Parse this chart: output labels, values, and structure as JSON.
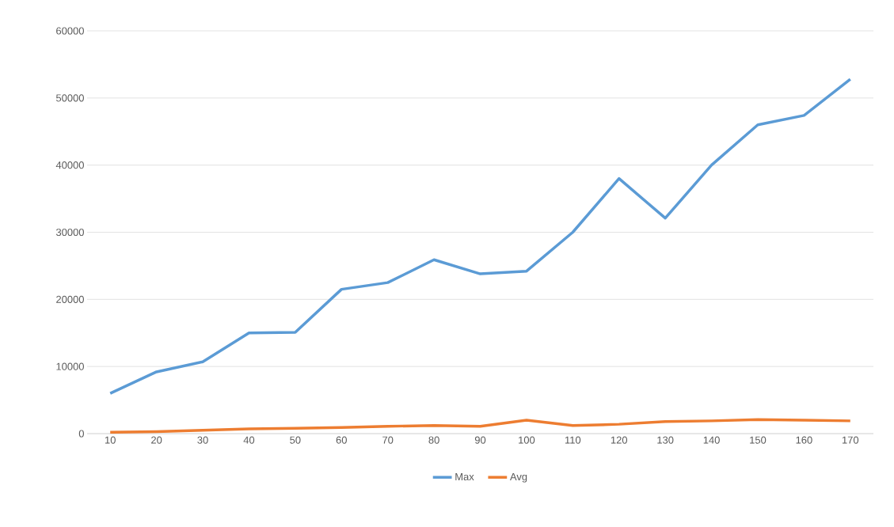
{
  "chart_data": {
    "type": "line",
    "categories": [
      "10",
      "20",
      "30",
      "40",
      "50",
      "60",
      "70",
      "80",
      "90",
      "100",
      "110",
      "120",
      "130",
      "140",
      "150",
      "160",
      "170"
    ],
    "series": [
      {
        "name": "Max",
        "color": "#5b9bd5",
        "values": [
          6000,
          9200,
          10700,
          15000,
          15100,
          21500,
          22500,
          25900,
          23800,
          24200,
          30000,
          38000,
          32100,
          40000,
          46000,
          47400,
          52800
        ]
      },
      {
        "name": "Avg",
        "color": "#ed7d31",
        "values": [
          200,
          300,
          500,
          700,
          800,
          900,
          1100,
          1200,
          1100,
          2000,
          1200,
          1400,
          1800,
          1900,
          2100,
          2000,
          1900
        ]
      }
    ],
    "ylim": [
      0,
      60000
    ],
    "yticks": [
      0,
      10000,
      20000,
      30000,
      40000,
      50000,
      60000
    ],
    "grid": "y",
    "legend": "bottom",
    "marker": "none",
    "line_style": "solid"
  }
}
